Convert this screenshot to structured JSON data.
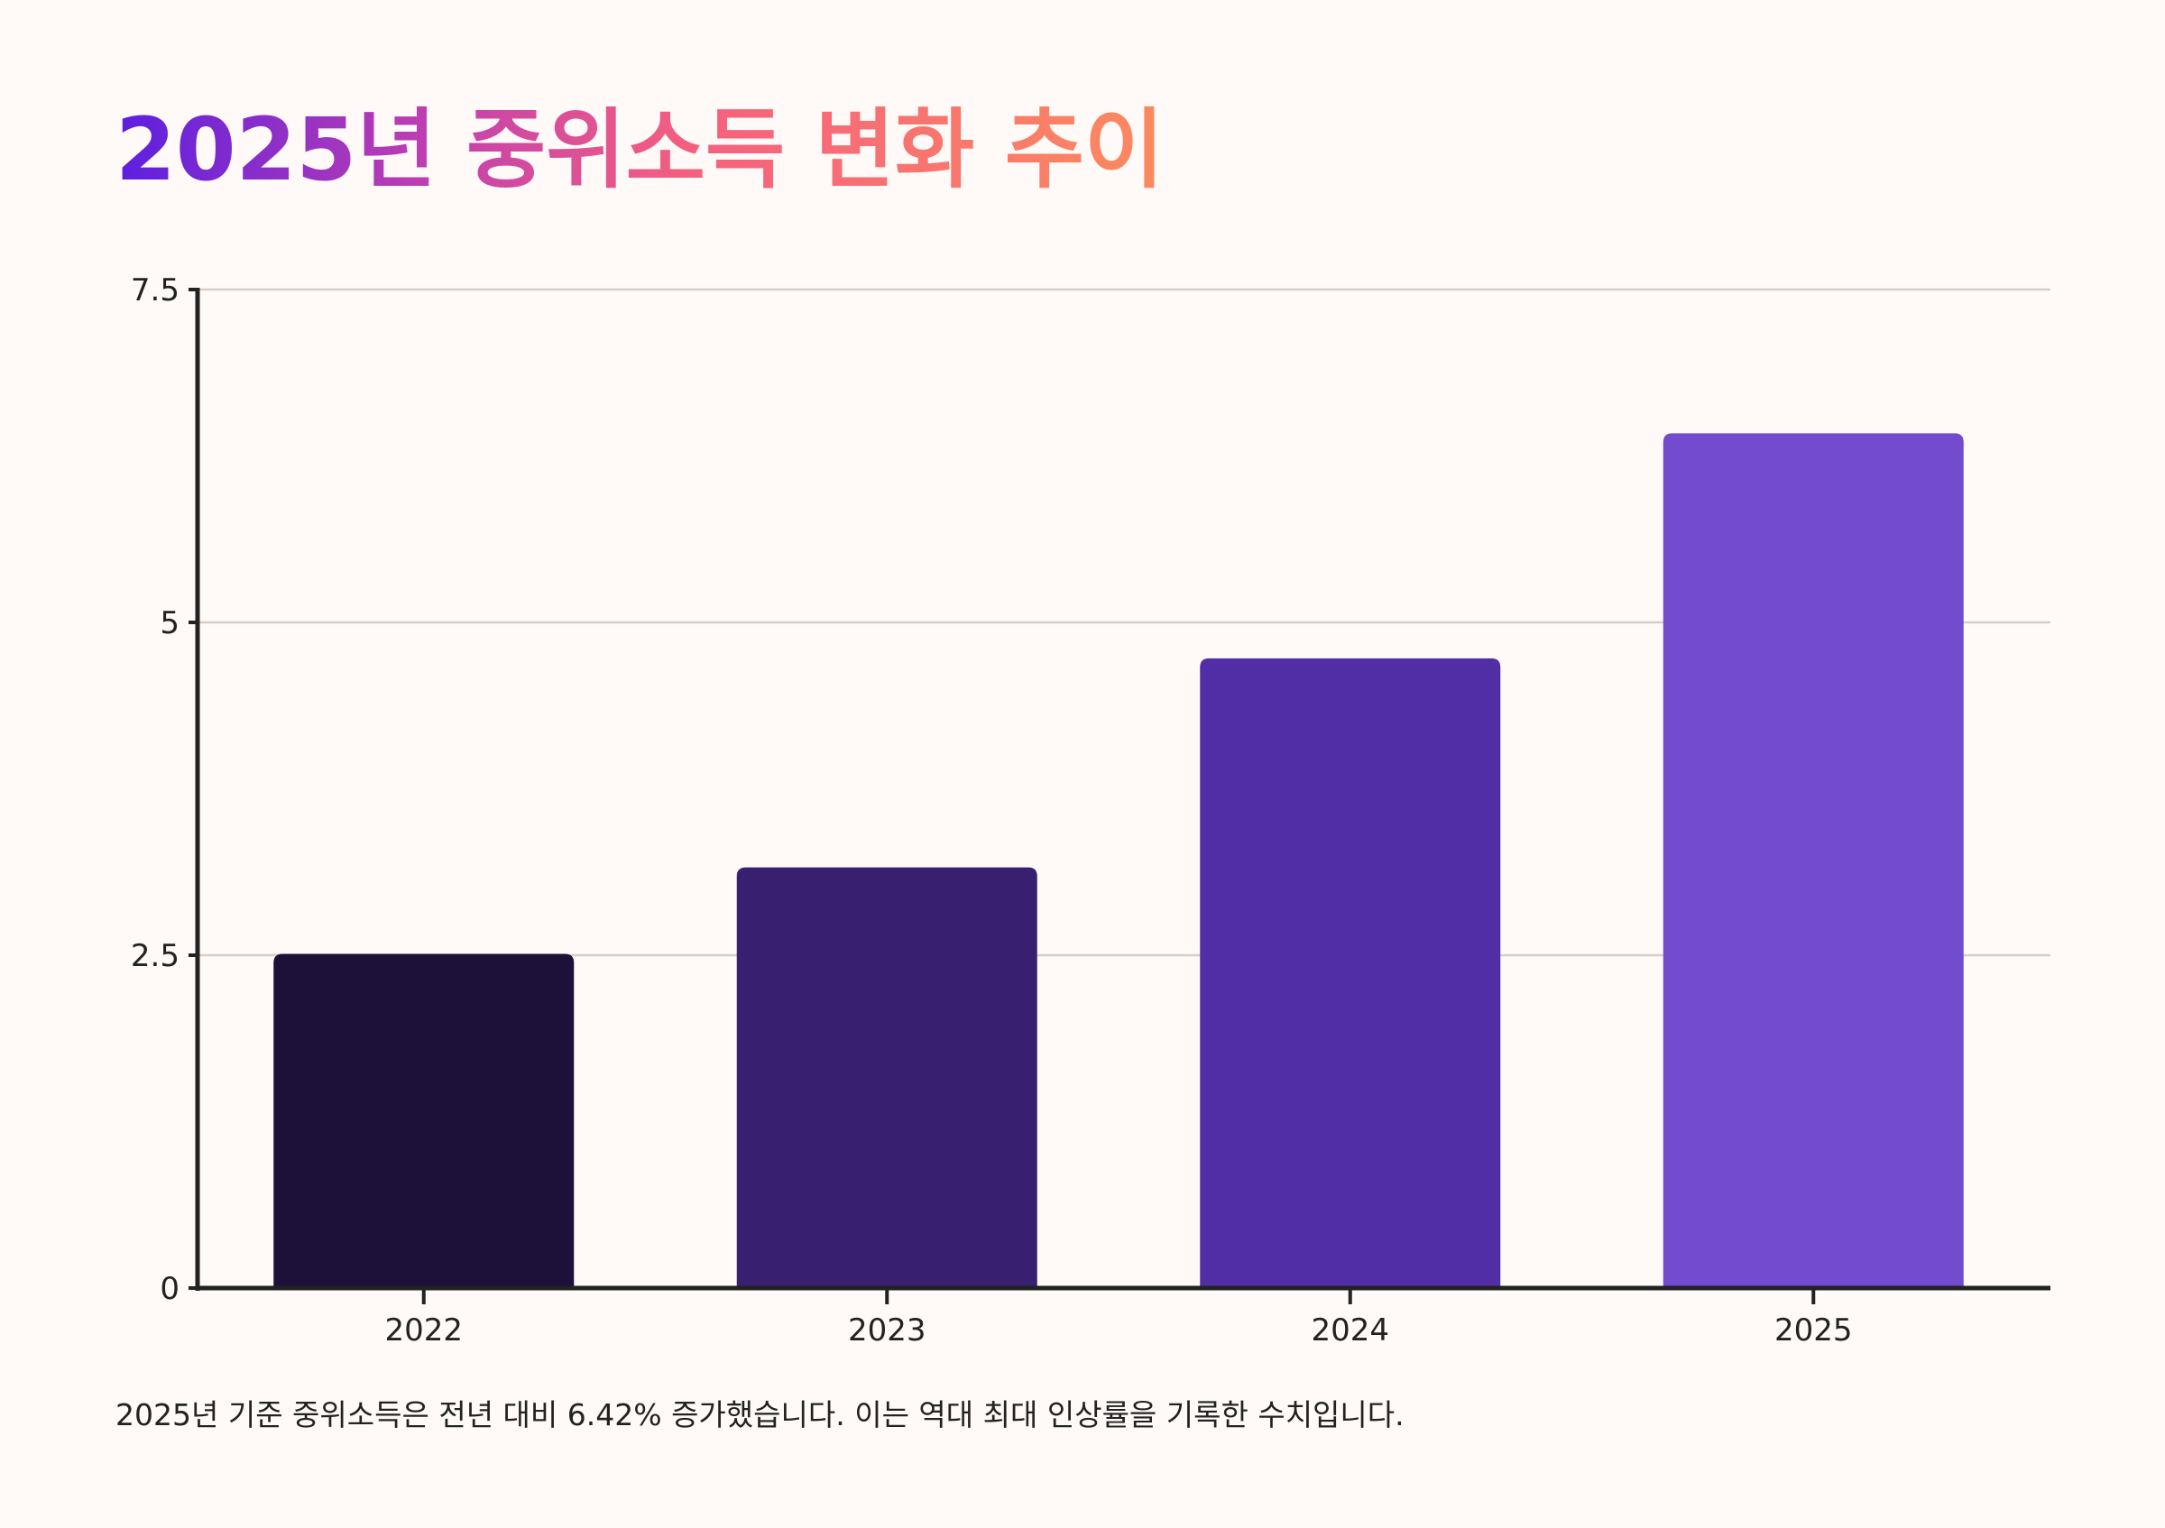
{
  "chart_data": {
    "type": "bar",
    "title": "2025년 중위소득 변화 추이",
    "categories": [
      "2022",
      "2023",
      "2024",
      "2025"
    ],
    "values": [
      2.51,
      3.16,
      4.73,
      6.42
    ],
    "colors": [
      "#1d1139",
      "#381f70",
      "#512ea6",
      "#734bce"
    ],
    "xlabel": "",
    "ylabel": "",
    "ylim": [
      0,
      7.5
    ],
    "yticks": [
      "0",
      "2.5",
      "5",
      "7.5"
    ],
    "grid": true,
    "legend": "none"
  },
  "caption": "2025년 기준 중위소득은 전년 대비 6.42% 증가했습니다. 이는 역대 최대 인상률을 기록한 수치입니다."
}
